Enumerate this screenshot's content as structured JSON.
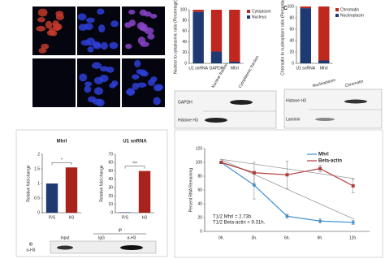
{
  "panel_label": "C",
  "blot_fractionation": {
    "columns": [
      "Nuclear fraction",
      "Cytoplasmic fraction"
    ],
    "rows": [
      "GAPDH",
      "Histone H3"
    ]
  },
  "blot_chromatin": {
    "columns": [
      "Nucleoplasm",
      "Chromatin"
    ],
    "rows": [
      "Histone H3",
      "Laminin"
    ]
  },
  "blot_ip": {
    "header": "IP",
    "columns": [
      "Input",
      "IgG",
      "α-H3"
    ],
    "rows": [
      "IB",
      "α-H3"
    ]
  },
  "chart_data": [
    {
      "type": "stacked-bar",
      "ylabel": "Nuclear to cytoplasmic ratio (Percentage)",
      "categories": [
        "U1 snRNA",
        "GAPDH",
        "Mhrl"
      ],
      "series": [
        {
          "name": "Nucleus",
          "color": "#1f3a73",
          "values": [
            96,
            22,
            3
          ]
        },
        {
          "name": "Cytoplasm",
          "color": "#c0281f",
          "values": [
            4,
            78,
            97
          ]
        }
      ],
      "ylim": [
        0,
        100
      ],
      "yticks": [
        0,
        20,
        40,
        60,
        80,
        100
      ]
    },
    {
      "type": "stacked-bar",
      "ylabel": "Chromatin to nucleoplasm ratio (Percentage)",
      "categories": [
        "U1 snRNA",
        "Mhrl"
      ],
      "series": [
        {
          "name": "Nucleoplasm",
          "color": "#1f3a73",
          "values": [
            97,
            5
          ]
        },
        {
          "name": "Chromatin",
          "color": "#c0281f",
          "values": [
            3,
            95
          ]
        }
      ],
      "ylim": [
        0,
        100
      ],
      "yticks": [
        0,
        20,
        40,
        60,
        80,
        100
      ]
    },
    {
      "type": "bar",
      "title": "Mhrl",
      "ylabel": "Relative fold change",
      "categories": [
        "P/S",
        "H3"
      ],
      "values": [
        1,
        1.55
      ],
      "colors": [
        "#1f3a73",
        "#a8231c"
      ],
      "annotation": "*",
      "ylim": [
        0,
        2
      ],
      "yticks": [
        0,
        0.5,
        1,
        1.5,
        2
      ]
    },
    {
      "type": "bar",
      "title": "U1 snRNA",
      "ylabel": "Relative fold change",
      "categories": [
        "P/S",
        "H3"
      ],
      "values": [
        0.5,
        50
      ],
      "colors": [
        "#1f3a73",
        "#a8231c"
      ],
      "annotation": "***",
      "ylim": [
        0,
        70
      ],
      "yticks": [
        0,
        10,
        20,
        30,
        40,
        50,
        60,
        70
      ]
    },
    {
      "type": "line",
      "ylabel": "Percent RNA Remaining",
      "categories": [
        "0h.",
        "3h.",
        "6h.",
        "9h.",
        "12h."
      ],
      "series": [
        {
          "name": "Mhrl",
          "color": "#3d8fd1",
          "values": [
            100,
            67,
            22,
            15,
            13
          ],
          "errors": [
            2,
            20,
            3,
            3,
            3
          ]
        },
        {
          "name": "Beta-actin",
          "color": "#b03a3a",
          "values": [
            100,
            85,
            82,
            91,
            66
          ],
          "errors": [
            2,
            15,
            20,
            5,
            10
          ]
        }
      ],
      "annotations": [
        "T1/2 Mhrl = 2.73h.",
        "T1/2 Beta-actin = 9.31h."
      ],
      "ylim": [
        0,
        120
      ],
      "yticks": [
        0,
        20,
        40,
        60,
        80,
        100,
        120
      ]
    }
  ]
}
